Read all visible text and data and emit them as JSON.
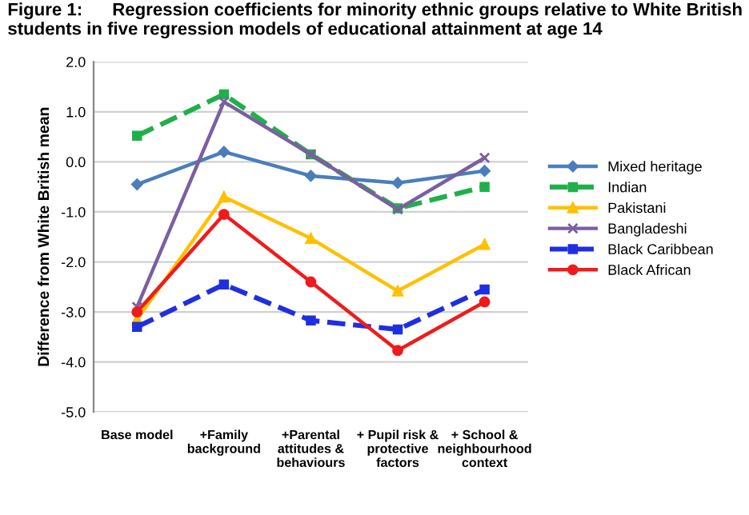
{
  "chart_data": {
    "type": "line",
    "title": "Figure 1:      Regression coefficients for minority ethnic groups relative to White British students in five regression models of educational attainment at age 14",
    "ylabel": "Difference from White British mean",
    "categories": [
      "Base model",
      "+Family\nbackground",
      "+Parental\nattitudes &\nbehaviours",
      "+ Pupil risk &\nprotective\nfactors",
      "+ School &\nneighbourhood\ncontext"
    ],
    "series": [
      {
        "name": "Mixed heritage",
        "color": "#4a7ebb",
        "marker": "diamond",
        "line_style": "solid",
        "values": [
          -0.45,
          0.2,
          -0.28,
          -0.42,
          -0.18
        ]
      },
      {
        "name": "Indian",
        "color": "#1fb04a",
        "marker": "square",
        "line_style": "dashed",
        "values": [
          0.52,
          1.35,
          0.15,
          -0.93,
          -0.5
        ]
      },
      {
        "name": "Pakistani",
        "color": "#ffc000",
        "marker": "triangle",
        "line_style": "solid",
        "values": [
          -3.15,
          -0.7,
          -1.53,
          -2.58,
          -1.65
        ]
      },
      {
        "name": "Bangladeshi",
        "color": "#7b5fa0",
        "marker": "cross",
        "line_style": "solid",
        "values": [
          -2.9,
          1.2,
          0.15,
          -0.95,
          0.08
        ]
      },
      {
        "name": "Black Caribbean",
        "color": "#1f2fe0",
        "marker": "square",
        "line_style": "dashed",
        "values": [
          -3.3,
          -2.45,
          -3.17,
          -3.35,
          -2.55
        ]
      },
      {
        "name": "Black African",
        "color": "#ee1c1c",
        "marker": "circle",
        "line_style": "solid",
        "values": [
          -3.0,
          -1.05,
          -2.4,
          -3.77,
          -2.8
        ]
      }
    ],
    "ylim": [
      -5.0,
      2.0
    ],
    "yticks": [
      {
        "value": -5,
        "label": "-5.0"
      },
      {
        "value": -4,
        "label": "-4.0"
      },
      {
        "value": -3,
        "label": "-3.0"
      },
      {
        "value": -2,
        "label": "-2.0"
      },
      {
        "value": -1,
        "label": "-1.0"
      },
      {
        "value": 0,
        "label": "0.0"
      },
      {
        "value": 1,
        "label": "1.0"
      },
      {
        "value": 2,
        "label": "2.0"
      }
    ],
    "grid": "y",
    "legend": "right"
  }
}
